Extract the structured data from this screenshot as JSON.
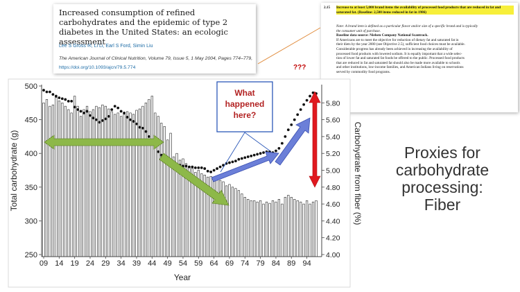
{
  "citation": {
    "title": "Increased consumption of refined carbohydrates and the epidemic of type 2 diabetes in the United States: an ecologic assessment",
    "authors": "Lee S Gross ✉, Li Li, Earl S Ford, Simin Liu",
    "journal": "The American Journal of Clinical Nutrition, Volume 79, Issue 5, 1 May 2004, Pages 774–779,",
    "doi": "https://doi.org/10.1093/ajcn/79.5.774"
  },
  "objective": {
    "number": "2.15",
    "highlight": "Increase to at least 5,000 brand items the availability of processed food products that are reduced in fat and saturated fat. (Baseline: 2,500 items reduced in fat in 1986)",
    "lines": [
      "Note: A brand item is defined as a particular flavor and/or size of a specific brand and is typically",
      "the consumer unit of purchase.",
      "Baseline data source: Nielsen Company National Scantrack.",
      "If Americans are to meet the objective for reduction of dietary fat and saturated fat in",
      "their diets by the year 2000 (see Objective 2.5), sufficient food choices must be available.",
      "Considerable progress has already been achieved in increasing the availability of",
      "processed food products with lowered sodium. It is equally important that a wide selec-",
      "tion of lower fat and saturated fat foods be offered to the public. Processed food products",
      "that are reduced in fat and saturated fat should also be made more available to schools",
      "and other institutions, low-income families, and American Indians living on reservations",
      "served by commodity food programs."
    ]
  },
  "annotation": {
    "callout": "What happened here?",
    "questions": "???"
  },
  "caption": {
    "line1": "Proxies for",
    "line2": "carbohydrate",
    "line3": "processing:",
    "line4": "Fiber"
  },
  "chart_data": {
    "type": "bar",
    "title": "",
    "xlabel": "Year",
    "ylabel": "Total carbohydrate (g)",
    "y2label": "Carbohydrate from fiber (%)",
    "x_tick_labels": [
      "09",
      "14",
      "19",
      "24",
      "29",
      "34",
      "39",
      "44",
      "49",
      "54",
      "59",
      "64",
      "69",
      "74",
      "79",
      "84",
      "89",
      "94"
    ],
    "ylim": [
      250,
      500
    ],
    "y_ticks": [
      250,
      300,
      350,
      400,
      450,
      500
    ],
    "y2lim": [
      4.0,
      6.0
    ],
    "y2_ticks": [
      "4.00",
      "4.20",
      "4.40",
      "4.60",
      "4.80",
      "5.00",
      "5.20",
      "5.40",
      "5.60",
      "5.80"
    ],
    "grid": false,
    "series": [
      {
        "kind": "bars",
        "axis": "left",
        "x": [
          1909,
          1910,
          1911,
          1912,
          1913,
          1914,
          1915,
          1916,
          1917,
          1918,
          1919,
          1920,
          1921,
          1922,
          1923,
          1924,
          1925,
          1926,
          1927,
          1928,
          1929,
          1930,
          1931,
          1932,
          1933,
          1934,
          1935,
          1936,
          1937,
          1938,
          1939,
          1940,
          1941,
          1942,
          1943,
          1944,
          1945,
          1946,
          1947,
          1948,
          1949,
          1950,
          1951,
          1952,
          1953,
          1954,
          1955,
          1956,
          1957,
          1958,
          1959,
          1960,
          1961,
          1962,
          1963,
          1964,
          1965,
          1966,
          1967,
          1968,
          1969,
          1970,
          1971,
          1972,
          1973,
          1974,
          1975,
          1976,
          1977,
          1978,
          1979,
          1980,
          1981,
          1982,
          1983,
          1984,
          1985,
          1986,
          1987,
          1988,
          1989,
          1990,
          1991,
          1992,
          1993,
          1994,
          1995,
          1996,
          1997
        ],
        "values": [
          475,
          480,
          470,
          472,
          483,
          478,
          475,
          470,
          465,
          460,
          485,
          470,
          455,
          465,
          470,
          462,
          465,
          470,
          468,
          472,
          470,
          466,
          462,
          458,
          460,
          455,
          458,
          462,
          460,
          458,
          464,
          466,
          470,
          475,
          480,
          485,
          460,
          455,
          445,
          440,
          420,
          430,
          395,
          400,
          390,
          392,
          385,
          380,
          378,
          372,
          375,
          370,
          368,
          365,
          366,
          365,
          362,
          360,
          358,
          352,
          354,
          350,
          348,
          345,
          340,
          335,
          332,
          330,
          330,
          328,
          330,
          325,
          328,
          326,
          330,
          328,
          332,
          325,
          335,
          338,
          335,
          332,
          330,
          328,
          325,
          330,
          325,
          328,
          330
        ]
      },
      {
        "kind": "dots",
        "axis": "right",
        "x": [
          1909,
          1910,
          1911,
          1912,
          1913,
          1914,
          1915,
          1916,
          1917,
          1918,
          1919,
          1920,
          1921,
          1922,
          1923,
          1924,
          1925,
          1926,
          1927,
          1928,
          1929,
          1930,
          1931,
          1932,
          1933,
          1934,
          1935,
          1936,
          1937,
          1938,
          1939,
          1940,
          1941,
          1942,
          1943,
          1944,
          1945,
          1946,
          1947,
          1948,
          1949,
          1950,
          1951,
          1952,
          1953,
          1954,
          1955,
          1956,
          1957,
          1958,
          1959,
          1960,
          1961,
          1962,
          1963,
          1964,
          1965,
          1966,
          1967,
          1968,
          1969,
          1970,
          1971,
          1972,
          1973,
          1974,
          1975,
          1976,
          1977,
          1978,
          1979,
          1980,
          1981,
          1982,
          1983,
          1984,
          1985,
          1986,
          1987,
          1988,
          1989,
          1990,
          1991,
          1992,
          1993,
          1994,
          1995,
          1996,
          1997
        ],
        "values": [
          5.95,
          5.93,
          5.93,
          5.9,
          5.88,
          5.86,
          5.85,
          5.84,
          5.82,
          5.82,
          5.75,
          5.72,
          5.7,
          5.68,
          5.7,
          5.65,
          5.62,
          5.6,
          5.57,
          5.59,
          5.61,
          5.64,
          5.72,
          5.76,
          5.74,
          5.7,
          5.68,
          5.63,
          5.6,
          5.58,
          5.55,
          5.51,
          5.5,
          5.46,
          5.4,
          5.35,
          5.28,
          5.22,
          5.18,
          5.15,
          5.12,
          5.1,
          5.08,
          5.07,
          5.06,
          5.05,
          5.05,
          5.04,
          5.04,
          5.03,
          5.03,
          5.03,
          5.02,
          4.99,
          4.98,
          5.0,
          5.02,
          5.04,
          5.06,
          5.08,
          5.09,
          5.1,
          5.11,
          5.13,
          5.14,
          5.15,
          5.16,
          5.17,
          5.18,
          5.19,
          5.2,
          5.21,
          5.22,
          5.22,
          5.21,
          5.23,
          5.26,
          5.32,
          5.4,
          5.48,
          5.54,
          5.6,
          5.66,
          5.72,
          5.78,
          5.83,
          5.88,
          5.92,
          5.91
        ]
      }
    ],
    "colors": {
      "green_arrow": "#8db849",
      "blue_arrow": "#6b7fd8",
      "red_arrow": "#e0191f",
      "callout_border": "#2b58b8",
      "callout_text": "#b22222",
      "highlight": "#f7ef3a",
      "questions": "#c00000",
      "pointer_line": "#e08a3a"
    }
  }
}
